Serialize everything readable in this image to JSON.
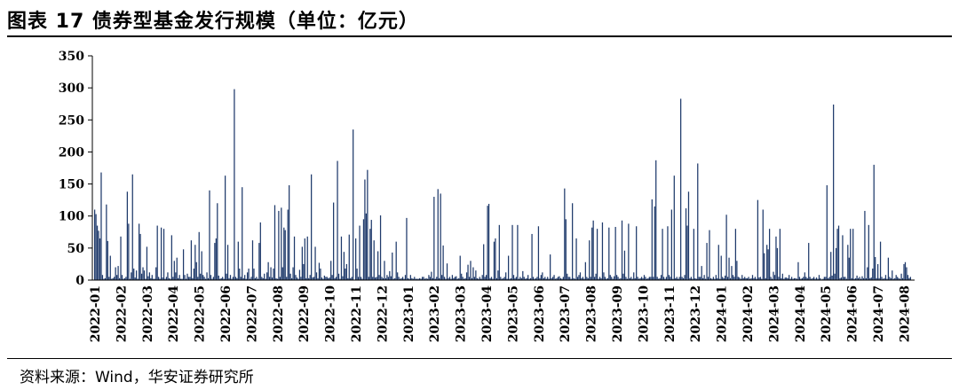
{
  "figure": {
    "title": "图表 17 债券型基金发行规模（单位：亿元）",
    "source": "资料来源：Wind，华安证券研究所"
  },
  "colors": {
    "bar": "#1f3a6b",
    "axis": "#000000"
  },
  "chart_data": {
    "type": "bar",
    "title": "",
    "xlabel": "",
    "ylabel": "",
    "ylim": [
      0,
      350
    ],
    "yticks": [
      0,
      50,
      100,
      150,
      200,
      250,
      300,
      350
    ],
    "grid": false,
    "legend": "none",
    "xticks": [
      "2022-01",
      "2022-02",
      "2022-03",
      "2022-04",
      "2022-05",
      "2022-06",
      "2022-07",
      "2022-08",
      "2022-09",
      "2022-10",
      "2022-11",
      "2022-12",
      "2023-01",
      "2023-02",
      "2023-03",
      "2023-04",
      "2023-05",
      "2023-06",
      "2023-07",
      "2023-08",
      "2023-09",
      "2023-10",
      "2023-11",
      "2023-12",
      "2024-01",
      "2024-02",
      "2024-03",
      "2024-04",
      "2024-05",
      "2024-06",
      "2024-07",
      "2024-08"
    ],
    "monthly_values": [
      [
        110,
        103,
        85,
        77,
        65,
        168,
        8,
        2,
        3,
        118,
        61,
        5,
        38,
        2,
        3,
        5,
        20,
        8,
        22,
        3
      ],
      [
        68,
        8,
        2,
        3,
        5,
        138,
        88,
        2,
        12,
        165,
        18,
        4,
        15,
        2,
        88,
        72,
        10,
        20,
        15,
        2
      ],
      [
        52,
        6,
        12,
        3,
        8,
        2,
        2,
        20,
        85,
        5,
        2,
        82,
        4,
        80,
        2,
        5,
        12,
        3,
        2,
        70
      ],
      [
        5,
        30,
        12,
        35,
        3,
        8,
        2,
        2,
        48,
        8,
        2,
        10,
        5,
        5,
        62,
        3,
        18,
        55,
        28,
        5
      ],
      [
        75,
        10,
        45,
        8,
        5,
        2,
        12,
        3,
        140,
        8,
        2,
        5,
        58,
        65,
        120,
        7,
        2,
        3,
        5,
        2
      ],
      [
        163,
        10,
        55,
        3,
        8,
        2,
        5,
        298,
        5,
        3,
        60,
        18,
        5,
        145,
        3,
        8,
        2,
        12,
        18,
        2
      ],
      [
        5,
        62,
        18,
        3,
        5,
        2,
        58,
        90,
        5,
        3,
        10,
        2,
        12,
        28,
        5,
        20,
        4,
        18,
        117,
        3
      ],
      [
        2,
        108,
        5,
        113,
        20,
        82,
        78,
        5,
        110,
        148,
        10,
        3,
        20,
        68,
        8,
        4,
        2,
        16,
        5,
        52
      ],
      [
        25,
        65,
        3,
        68,
        3,
        8,
        165,
        4,
        5,
        52,
        12,
        3,
        27,
        18,
        4,
        2,
        7,
        5,
        5,
        3
      ],
      [
        4,
        30,
        8,
        121,
        3,
        5,
        186,
        10,
        2,
        68,
        6,
        44,
        18,
        25,
        3,
        71,
        3,
        5,
        235
      ],
      [
        65,
        18,
        5,
        85,
        5,
        2,
        95,
        157,
        104,
        172,
        5,
        80,
        94,
        5,
        62,
        4,
        5,
        45,
        8,
        101
      ],
      [
        5,
        3,
        30,
        3,
        8,
        5,
        14,
        6,
        43,
        2,
        3,
        60,
        12,
        5,
        2,
        3,
        5,
        2,
        8,
        97
      ],
      [
        3,
        2,
        8,
        3,
        2,
        5,
        2,
        2,
        2,
        3,
        2,
        5,
        5,
        2,
        3,
        2,
        8,
        5,
        13,
        3
      ],
      [
        130,
        2,
        5,
        142,
        3,
        135,
        8,
        54,
        5,
        2,
        26,
        3,
        5,
        2,
        8,
        3,
        5,
        6,
        2,
        3
      ],
      [
        38,
        10,
        5,
        2,
        3,
        12,
        24,
        5,
        30,
        3,
        20,
        5,
        15,
        3,
        2,
        5,
        2,
        8,
        56,
        5
      ],
      [
        8,
        116,
        119,
        3,
        5,
        2,
        60,
        65,
        3,
        15,
        86,
        5,
        2,
        3,
        5,
        12,
        2,
        38,
        2,
        3
      ],
      [
        86,
        8,
        3,
        5,
        86,
        2,
        5,
        3,
        14,
        5,
        2,
        3,
        8,
        2,
        3,
        72,
        5,
        2,
        3,
        5
      ],
      [
        84,
        3,
        8,
        12,
        3,
        5,
        2,
        5,
        2,
        40,
        3,
        5,
        8,
        2,
        3,
        5,
        6,
        3,
        2,
        5
      ],
      [
        143,
        95,
        10,
        5,
        5,
        2,
        120,
        3,
        2,
        65,
        5,
        8,
        12,
        3,
        5,
        2,
        28,
        5,
        3,
        62
      ],
      [
        5,
        82,
        93,
        5,
        10,
        80,
        2,
        5,
        3,
        90,
        12,
        5,
        2,
        3,
        82,
        8,
        5,
        2,
        6,
        83
      ],
      [
        8,
        5,
        2,
        3,
        93,
        10,
        46,
        5,
        2,
        88,
        3,
        5,
        2,
        12,
        3,
        84,
        5,
        2,
        3,
        5
      ],
      [
        3,
        8,
        5,
        2,
        3,
        5,
        5,
        126,
        5,
        115,
        187,
        5,
        2,
        3,
        8,
        80,
        5,
        2,
        5,
        84
      ],
      [
        8,
        5,
        110,
        2,
        163,
        3,
        5,
        2,
        5,
        283,
        5,
        3,
        8,
        112,
        85,
        138,
        3,
        5,
        2,
        80
      ],
      [
        3,
        2,
        182,
        5,
        5,
        22,
        3,
        8,
        2,
        58,
        5,
        78,
        3,
        2,
        5,
        2,
        8,
        3,
        55,
        2
      ],
      [
        38,
        5,
        3,
        7,
        102,
        5,
        35,
        3,
        22,
        8,
        5,
        80,
        30,
        5,
        4,
        2,
        8,
        3,
        5,
        3
      ],
      [
        3,
        5,
        2,
        3,
        8,
        3,
        5,
        2,
        125,
        4,
        5,
        2,
        110,
        42,
        3,
        55,
        48,
        80,
        5,
        2
      ],
      [
        13,
        8,
        68,
        50,
        5,
        80,
        3,
        10,
        2,
        4,
        4,
        3,
        8,
        2,
        5,
        2,
        3,
        3,
        2,
        28
      ],
      [
        5,
        2,
        3,
        5,
        12,
        5,
        3,
        58,
        5,
        2,
        3,
        5,
        2,
        4,
        2,
        8,
        3,
        1,
        2,
        5
      ],
      [
        5,
        148,
        3,
        5,
        44,
        7,
        274,
        10,
        50,
        80,
        85,
        3,
        4,
        70,
        5,
        5,
        2,
        55,
        35,
        80
      ],
      [
        3,
        80,
        2,
        3,
        7,
        3,
        5,
        2,
        6,
        3,
        108,
        3,
        20,
        86,
        3,
        4,
        18,
        180,
        36,
        3
      ],
      [
        25,
        3,
        60,
        5,
        2,
        3,
        8,
        2,
        35,
        5,
        3,
        15,
        2,
        3,
        8,
        5,
        3,
        2,
        10,
        3
      ],
      [
        25,
        28,
        20,
        8,
        3,
        5
      ]
    ]
  }
}
